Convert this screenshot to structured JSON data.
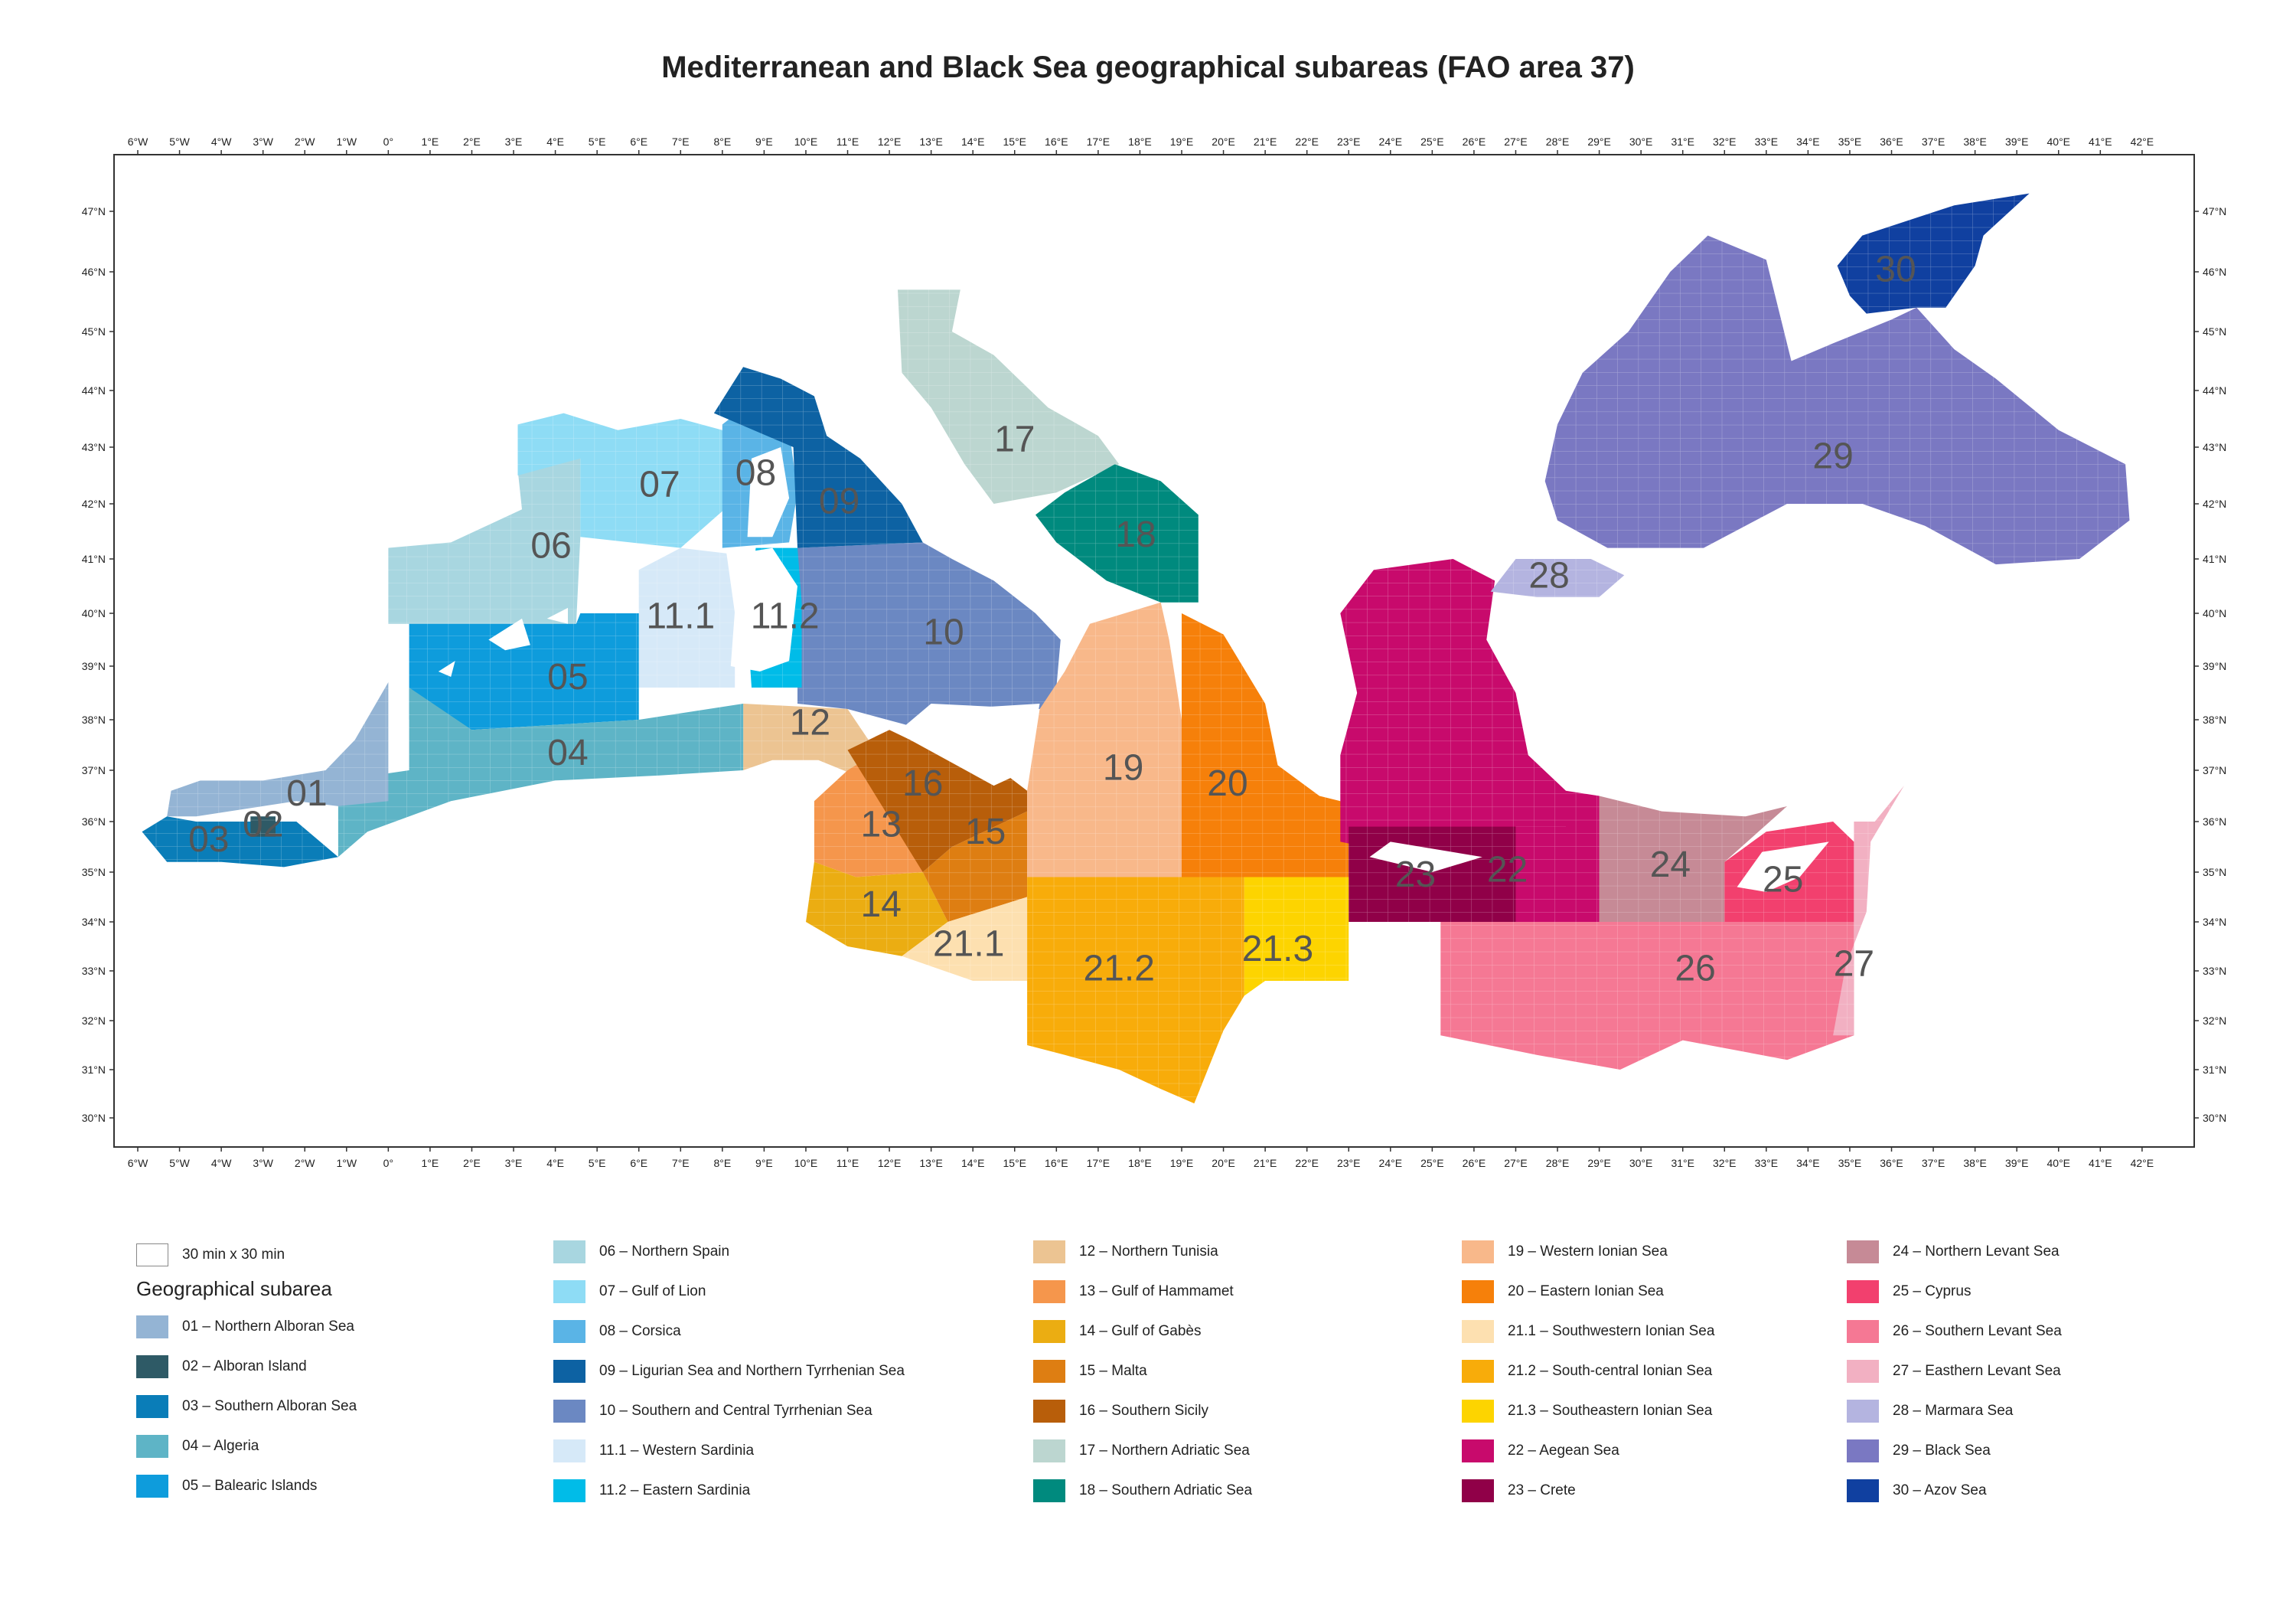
{
  "title": "Mediterranean and Black Sea geographical subareas (FAO area 37)",
  "grid_legend": "30 min x 30 min",
  "legend_heading": "Geographical subarea",
  "lon_ticks": [
    "6°W",
    "5°W",
    "4°W",
    "3°W",
    "2°W",
    "1°W",
    "0°",
    "1°E",
    "2°E",
    "3°E",
    "4°E",
    "5°E",
    "6°E",
    "7°E",
    "8°E",
    "9°E",
    "10°E",
    "11°E",
    "12°E",
    "13°E",
    "14°E",
    "15°E",
    "16°E",
    "17°E",
    "18°E",
    "19°E",
    "20°E",
    "21°E",
    "22°E",
    "23°E",
    "24°E",
    "25°E",
    "26°E",
    "27°E",
    "28°E",
    "29°E",
    "30°E",
    "31°E",
    "32°E",
    "33°E",
    "34°E",
    "35°E",
    "36°E",
    "37°E",
    "38°E",
    "39°E",
    "40°E",
    "41°E",
    "42°E"
  ],
  "lat_ticks": [
    "47°N",
    "46°N",
    "45°N",
    "44°N",
    "43°N",
    "42°N",
    "41°N",
    "40°N",
    "39°N",
    "38°N",
    "37°N",
    "36°N",
    "35°N",
    "34°N",
    "33°N",
    "32°N",
    "31°N",
    "30°N"
  ],
  "subareas": [
    {
      "code": "01",
      "legend": "01 – Northern Alboran Sea",
      "color": "#94b4d4",
      "lon": -1.95,
      "lat": 36.5
    },
    {
      "code": "02",
      "legend": "02 – Alboran Island",
      "color": "#2e5a66",
      "lon": -3.0,
      "lat": 35.9
    },
    {
      "code": "03",
      "legend": "03 – Southern Alboran Sea",
      "color": "#0a7db8",
      "lon": -4.3,
      "lat": 35.6
    },
    {
      "code": "04",
      "legend": "04 – Algeria",
      "color": "#5eb4c6",
      "lon": 4.3,
      "lat": 37.3
    },
    {
      "code": "05",
      "legend": "05 – Balearic Islands",
      "color": "#0e9cdc",
      "lon": 4.3,
      "lat": 38.75
    },
    {
      "code": "06",
      "legend": "06 – Northern Spain",
      "color": "#a8d6e0",
      "lon": 3.9,
      "lat": 41.2
    },
    {
      "code": "07",
      "legend": "07 – Gulf of Lion",
      "color": "#8edcf5",
      "lon": 6.5,
      "lat": 42.3
    },
    {
      "code": "08",
      "legend": "08 – Corsica",
      "color": "#5ab4e6",
      "lon": 8.8,
      "lat": 42.5
    },
    {
      "code": "09",
      "legend": "09 – Ligurian Sea and Northern Tyrrhenian Sea",
      "color": "#0d62a3",
      "lon": 10.8,
      "lat": 42.0
    },
    {
      "code": "10",
      "legend": "10 – Southern and Central Tyrrhenian Sea",
      "color": "#6b88c2",
      "lon": 13.3,
      "lat": 39.6
    },
    {
      "code": "11.1",
      "legend": "11.1 – Western Sardinia",
      "color": "#d6e9f8",
      "lon": 7.0,
      "lat": 39.9
    },
    {
      "code": "11.2",
      "legend": "11.2 – Eastern Sardinia",
      "color": "#00bce8",
      "lon": 9.5,
      "lat": 39.9
    },
    {
      "code": "12",
      "legend": "12 – Northern Tunisia",
      "color": "#ecc492",
      "lon": 10.1,
      "lat": 37.9
    },
    {
      "code": "13",
      "legend": "13 – Gulf of Hammamet",
      "color": "#f5964c",
      "lon": 11.8,
      "lat": 35.9
    },
    {
      "code": "14",
      "legend": "14 – Gulf of Gabès",
      "color": "#ebad12",
      "lon": 11.8,
      "lat": 34.3
    },
    {
      "code": "15",
      "legend": "15 – Malta",
      "color": "#de7e12",
      "lon": 14.3,
      "lat": 35.75
    },
    {
      "code": "16",
      "legend": "16 – Southern Sicily",
      "color": "#b85e0a",
      "lon": 12.8,
      "lat": 36.7
    },
    {
      "code": "17",
      "legend": "17 – Northern Adriatic Sea",
      "color": "#bcd6d0",
      "lon": 15.0,
      "lat": 43.1
    },
    {
      "code": "18",
      "legend": "18 – Southern Adriatic Sea",
      "color": "#008a7e",
      "lon": 17.9,
      "lat": 41.4
    },
    {
      "code": "19",
      "legend": "19 – Western Ionian Sea",
      "color": "#f8b88a",
      "lon": 17.6,
      "lat": 37.0
    },
    {
      "code": "20",
      "legend": "20 – Eastern Ionian Sea",
      "color": "#f6800a",
      "lon": 20.1,
      "lat": 36.7
    },
    {
      "code": "21.1",
      "legend": "21.1 – Southwestern Ionian Sea",
      "color": "#fde0b0",
      "lon": 13.9,
      "lat": 33.5
    },
    {
      "code": "21.2",
      "legend": "21.2 – South-central Ionian Sea",
      "color": "#f8ac0a",
      "lon": 17.5,
      "lat": 33.0
    },
    {
      "code": "21.3",
      "legend": "21.3 – Southeastern Ionian Sea",
      "color": "#fdd400",
      "lon": 21.3,
      "lat": 33.4
    },
    {
      "code": "22",
      "legend": "22 – Aegean Sea",
      "color": "#c80a6c",
      "lon": 26.8,
      "lat": 35.0
    },
    {
      "code": "23",
      "legend": "23 – Crete",
      "color": "#900048",
      "lon": 24.6,
      "lat": 34.9
    },
    {
      "code": "24",
      "legend": "24 – Northern Levant Sea",
      "color": "#c68a96",
      "lon": 30.7,
      "lat": 35.1
    },
    {
      "code": "25",
      "legend": "25 – Cyprus",
      "color": "#f2406e",
      "lon": 33.4,
      "lat": 34.8
    },
    {
      "code": "26",
      "legend": "26 – Southern Levant Sea",
      "color": "#f57894",
      "lon": 31.3,
      "lat": 33.0
    },
    {
      "code": "27",
      "legend": "27 – Easthern Levant Sea",
      "color": "#f2b0c2",
      "lon": 35.1,
      "lat": 33.1
    },
    {
      "code": "28",
      "legend": "28 – Marmara Sea",
      "color": "#b4b4e0",
      "lon": 27.8,
      "lat": 40.65
    },
    {
      "code": "29",
      "legend": "29 – Black Sea",
      "color": "#7a78c2",
      "lon": 34.6,
      "lat": 42.8
    },
    {
      "code": "30",
      "legend": "30 – Azov Sea",
      "color": "#1040a0",
      "lon": 36.1,
      "lat": 46.0
    }
  ]
}
